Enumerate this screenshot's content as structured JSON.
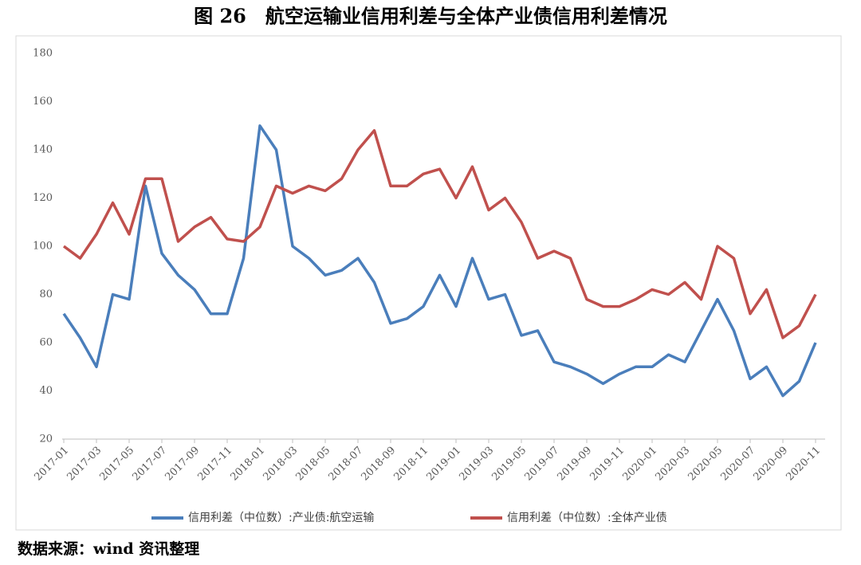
{
  "chart_data": {
    "type": "line",
    "title": "图 26　航空运输业信用利差与全体产业债信用利差情况",
    "source": "数据来源：wind 资讯整理",
    "x": [
      "2017-01",
      "2017-02",
      "2017-03",
      "2017-04",
      "2017-05",
      "2017-06",
      "2017-07",
      "2017-08",
      "2017-09",
      "2017-10",
      "2017-11",
      "2017-12",
      "2018-01",
      "2018-02",
      "2018-03",
      "2018-04",
      "2018-05",
      "2018-06",
      "2018-07",
      "2018-08",
      "2018-09",
      "2018-10",
      "2018-11",
      "2018-12",
      "2019-01",
      "2019-02",
      "2019-03",
      "2019-04",
      "2019-05",
      "2019-06",
      "2019-07",
      "2019-08",
      "2019-09",
      "2019-10",
      "2019-11",
      "2019-12",
      "2020-01",
      "2020-02",
      "2020-03",
      "2020-04",
      "2020-05",
      "2020-06",
      "2020-07",
      "2020-08",
      "2020-09",
      "2020-10",
      "2020-11"
    ],
    "xticks": [
      "2017-01",
      "2017-03",
      "2017-05",
      "2017-07",
      "2017-09",
      "2017-11",
      "2018-01",
      "2018-03",
      "2018-05",
      "2018-07",
      "2018-09",
      "2018-11",
      "2019-01",
      "2019-03",
      "2019-05",
      "2019-07",
      "2019-09",
      "2019-11",
      "2020-01",
      "2020-03",
      "2020-05",
      "2020-07",
      "2020-09",
      "2020-11"
    ],
    "ylim": [
      20,
      180
    ],
    "yticks": [
      20,
      40,
      60,
      80,
      100,
      120,
      140,
      160,
      180
    ],
    "series": [
      {
        "name": "信用利差（中位数）:产业债:航空运输",
        "color": "#4a7ebb",
        "values": [
          72,
          62,
          50,
          80,
          78,
          125,
          97,
          88,
          82,
          72,
          72,
          95,
          150,
          140,
          100,
          95,
          88,
          90,
          95,
          85,
          68,
          70,
          75,
          88,
          75,
          95,
          78,
          80,
          63,
          65,
          52,
          50,
          47,
          43,
          47,
          50,
          50,
          55,
          52,
          65,
          78,
          65,
          45,
          50,
          38,
          44,
          60
        ]
      },
      {
        "name": "信用利差（中位数）:全体产业债",
        "color": "#c0504d",
        "values": [
          100,
          95,
          105,
          118,
          105,
          128,
          128,
          102,
          108,
          112,
          103,
          102,
          108,
          125,
          122,
          125,
          123,
          128,
          140,
          148,
          125,
          125,
          130,
          132,
          120,
          133,
          115,
          120,
          110,
          95,
          98,
          95,
          78,
          75,
          75,
          78,
          82,
          80,
          85,
          78,
          100,
          95,
          72,
          82,
          62,
          67,
          80
        ]
      }
    ]
  }
}
